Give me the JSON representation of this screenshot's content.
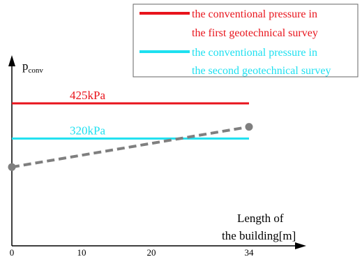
{
  "chart_data": {
    "type": "line",
    "ylabel": "p",
    "ylabel_sub": "conv",
    "xlabel_line1": "Length of",
    "xlabel_line2": "the building[m]",
    "x_ticks": [
      0,
      10,
      20,
      34
    ],
    "x_tick_labels": [
      "0",
      "10",
      "20",
      "34"
    ],
    "xlim": [
      0,
      34
    ],
    "ylim": [
      0,
      600
    ],
    "grid": false,
    "legend_position": "top-right",
    "series": [
      {
        "name_line1": "the conventional pressure in",
        "name_line2": "the first geotechnical survey",
        "color": "#e8141c",
        "style": "solid",
        "x": [
          0,
          34
        ],
        "y": [
          425,
          425
        ],
        "label": "425kPa"
      },
      {
        "name_line1": "the conventional pressure in",
        "name_line2": "the second geotechnical survey",
        "color": "#1ee0f0",
        "style": "solid",
        "x": [
          0,
          34
        ],
        "y": [
          320,
          320
        ],
        "label": "320kPa"
      },
      {
        "color": "#7f7f7f",
        "style": "dashed",
        "markers": "circle",
        "x": [
          0,
          34
        ],
        "y": [
          235,
          355
        ]
      }
    ]
  }
}
